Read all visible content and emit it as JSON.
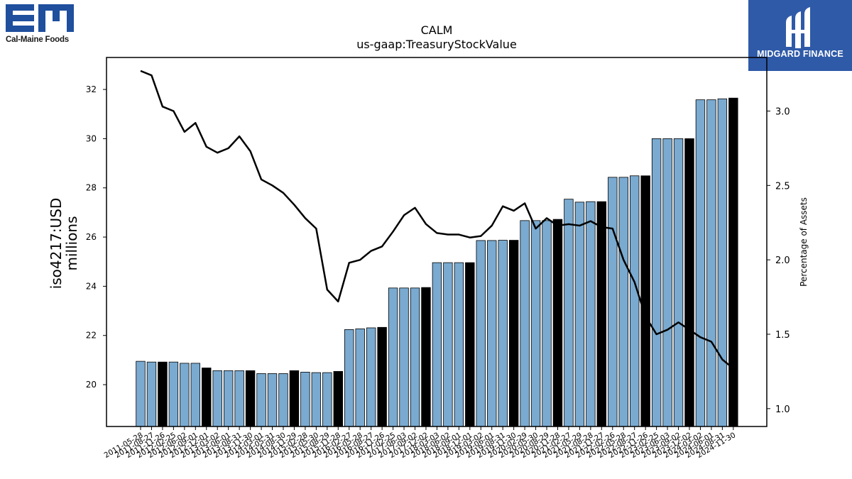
{
  "logos": {
    "left_caption": "Cal-Maine Foods",
    "left_mark": "EM",
    "right_caption": "MIDGARD FINANCE"
  },
  "chart_data": {
    "type": "bar",
    "title": "CALM",
    "subtitle": "us-gaap:TreasuryStockValue",
    "ylabel_left": "iso4217:USD\nmillions",
    "ylabel_right": "Percentage of Assets",
    "ylim_left": [
      18.3,
      33.3
    ],
    "ylim_right": [
      0.88,
      3.36
    ],
    "left_ticks": [
      20,
      22,
      24,
      26,
      28,
      30,
      32
    ],
    "right_ticks": [
      1.0,
      1.5,
      2.0,
      2.5,
      3.0
    ],
    "right_tick_labels": [
      "1.0",
      "1.5",
      "2.0",
      "2.5",
      "3.0"
    ],
    "bar_color_quarter": "#7aaad0",
    "bar_color_fiscal_year": "#000000",
    "line_color": "#000000",
    "categories": [
      "2011-05-28",
      "2011-08-27",
      "2011-11-26",
      "2012-02-25",
      "2012-06-02",
      "2012-09-01",
      "2012-12-01",
      "2013-03-02",
      "2013-06-01",
      "2013-08-31",
      "2013-11-30",
      "2014-03-01",
      "2014-05-31",
      "2014-08-30",
      "2014-11-29",
      "2015-02-28",
      "2015-05-30",
      "2015-08-29",
      "2015-11-28",
      "2016-02-27",
      "2016-05-28",
      "2016-08-27",
      "2016-11-26",
      "2017-02-25",
      "2017-06-03",
      "2017-09-02",
      "2017-12-02",
      "2018-03-03",
      "2018-06-02",
      "2018-09-01",
      "2018-12-01",
      "2019-03-02",
      "2019-06-01",
      "2019-08-31",
      "2019-11-30",
      "2020-02-29",
      "2020-05-30",
      "2020-08-29",
      "2020-11-28",
      "2021-02-27",
      "2021-05-29",
      "2021-08-28",
      "2021-11-27",
      "2022-02-26",
      "2022-05-28",
      "2022-08-27",
      "2022-11-26",
      "2023-02-25",
      "2023-06-03",
      "2023-09-02",
      "2023-12-02",
      "2024-03-02",
      "2024-06-01",
      "2024-08-31",
      "2024-11-30"
    ],
    "tick_labels": [
      "2011-05-28",
      "2011-08-27",
      "2011-11-26",
      "2012-02-25",
      "2012-06-02",
      "2012-09-01",
      "2012-12-01",
      "2013-03-02",
      "2013-06-01",
      "2013-08-31",
      "2013-11-30",
      "2014-03-01",
      "2014-05-31",
      "2014-08-30",
      "2014-11-29",
      "2015-02-28",
      "2015-05-30",
      "2015-08-29",
      "2015-11-28",
      "2016-02-27",
      "2016-05-28",
      "2016-08-27",
      "2016-11-26",
      "2017-02-25",
      "2017-06-03",
      "2017-09-02",
      "2017-12-02",
      "2018-03-03",
      "2018-06-02",
      "2018-09-01",
      "2018-12-01",
      "2019-03-02",
      "2019-06-01",
      "2019-08-31",
      "2019-11-30",
      "2020-02-29",
      "2020-05-30",
      "2020-08-29",
      "2020-11-28",
      "2021-02-27",
      "2021-05-29",
      "2021-08-28",
      "2021-11-27",
      "2022-02-26",
      "2022-05-28",
      "2022-08-27",
      "2022-11-26",
      "2023-02-25",
      "2023-06-03",
      "2023-09-02",
      "2023-12-02",
      "2024-03-02",
      "2024-06-01",
      "2024-08-31",
      "2024-11-30"
    ],
    "values": [
      20.95,
      20.92,
      20.92,
      20.92,
      20.87,
      20.87,
      20.68,
      20.57,
      20.57,
      20.57,
      20.57,
      20.45,
      20.45,
      20.45,
      20.57,
      20.51,
      20.49,
      20.49,
      20.54,
      22.24,
      22.27,
      22.31,
      22.33,
      23.93,
      23.93,
      23.93,
      23.95,
      24.96,
      24.96,
      24.96,
      24.96,
      25.86,
      25.86,
      25.87,
      25.87,
      26.67,
      26.67,
      26.67,
      26.72,
      27.54,
      27.42,
      27.44,
      27.44,
      28.43,
      28.43,
      28.49,
      28.49,
      30.0,
      30.0,
      30.0,
      30.0,
      31.58,
      31.58,
      31.62,
      31.65
    ],
    "fiscal_year_end": [
      false,
      false,
      true,
      false,
      false,
      false,
      true,
      false,
      false,
      false,
      true,
      false,
      false,
      false,
      true,
      false,
      false,
      false,
      true,
      false,
      false,
      false,
      true,
      false,
      false,
      false,
      true,
      false,
      false,
      false,
      true,
      false,
      false,
      false,
      true,
      false,
      false,
      false,
      true,
      false,
      false,
      false,
      true,
      false,
      false,
      false,
      true,
      false,
      false,
      false,
      true,
      false,
      false,
      false,
      true
    ],
    "pct_of_assets": [
      3.27,
      3.24,
      3.03,
      3.0,
      2.86,
      2.92,
      2.76,
      2.72,
      2.75,
      2.83,
      2.73,
      2.54,
      2.5,
      2.45,
      2.37,
      2.28,
      2.21,
      1.8,
      1.72,
      1.98,
      2.0,
      2.06,
      2.09,
      2.19,
      2.3,
      2.35,
      2.24,
      2.18,
      2.17,
      2.17,
      2.15,
      2.16,
      2.23,
      2.36,
      2.33,
      2.38,
      2.21,
      2.28,
      2.23,
      2.24,
      2.23,
      2.26,
      2.22,
      2.21,
      2.0,
      1.85,
      1.62,
      1.5,
      1.53,
      1.58,
      1.53,
      1.48,
      1.45,
      1.33,
      1.27
    ]
  }
}
